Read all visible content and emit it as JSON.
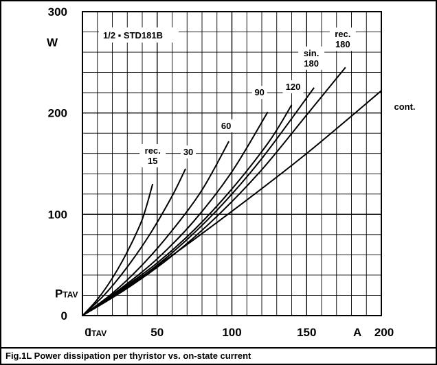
{
  "caption": "Fig.1L Power dissipation per thyristor vs. on-state current",
  "chart_data": {
    "type": "line",
    "device_label": "1/2 ▪ STD181B",
    "ylim": [
      0,
      300
    ],
    "xlim": [
      0,
      200
    ],
    "grid": true,
    "y_ticks": [
      {
        "value": 300,
        "label": "300"
      },
      {
        "value": 200,
        "label": "200"
      },
      {
        "value": 100,
        "label": "100"
      },
      {
        "value": 0,
        "label": "0"
      }
    ],
    "x_ticks": [
      {
        "value": 0,
        "label": "0"
      },
      {
        "value": 50,
        "label": "50"
      },
      {
        "value": 100,
        "label": "100"
      },
      {
        "value": 150,
        "label": "150"
      },
      {
        "value": 200,
        "label": "200"
      }
    ],
    "y_unit": "W",
    "y_symbol": {
      "main": "P",
      "sub": "TAV"
    },
    "x_unit": "A",
    "x_symbol": {
      "main": "I",
      "sub": "TAV"
    },
    "series": [
      {
        "name": "rec. 15",
        "label_lines": [
          "rec.",
          "15"
        ],
        "x": [
          0,
          10,
          20,
          30,
          40,
          47
        ],
        "y": [
          0,
          16,
          37,
          63,
          95,
          130
        ]
      },
      {
        "name": "30",
        "label_lines": [
          "30"
        ],
        "x": [
          0,
          15,
          30,
          45,
          60,
          69
        ],
        "y": [
          0,
          21,
          48,
          80,
          118,
          145
        ]
      },
      {
        "name": "60",
        "label_lines": [
          "60"
        ],
        "x": [
          0,
          20,
          40,
          60,
          80,
          98
        ],
        "y": [
          0,
          22,
          50,
          84,
          124,
          172
        ]
      },
      {
        "name": "90",
        "label_lines": [
          "90"
        ],
        "x": [
          0,
          25,
          50,
          75,
          100,
          124
        ],
        "y": [
          0,
          26,
          56,
          94,
          142,
          201
        ]
      },
      {
        "name": "120",
        "label_lines": [
          "120"
        ],
        "x": [
          0,
          25,
          50,
          75,
          100,
          125,
          140
        ],
        "y": [
          0,
          25,
          52,
          85,
          125,
          172,
          208
        ]
      },
      {
        "name": "sin. 180",
        "label_lines": [
          "sin.",
          "180"
        ],
        "x": [
          0,
          30,
          60,
          90,
          120,
          155
        ],
        "y": [
          0,
          28,
          62,
          104,
          155,
          225
        ]
      },
      {
        "name": "rec. 180",
        "label_lines": [
          "rec.",
          "180"
        ],
        "x": [
          0,
          30,
          60,
          90,
          120,
          150,
          176
        ],
        "y": [
          0,
          27,
          59,
          98,
          144,
          198,
          245
        ]
      },
      {
        "name": "cont.",
        "label_lines": [
          "cont."
        ],
        "x": [
          0,
          50,
          100,
          150,
          200
        ],
        "y": [
          0,
          49,
          103,
          160,
          222
        ]
      }
    ]
  }
}
